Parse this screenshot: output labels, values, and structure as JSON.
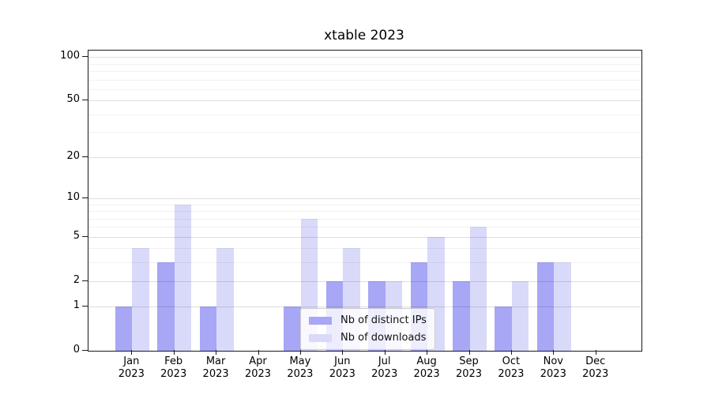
{
  "chart_data": {
    "type": "bar",
    "title": "xtable 2023",
    "categories": [
      "Jan",
      "Feb",
      "Mar",
      "Apr",
      "May",
      "Jun",
      "Jul",
      "Aug",
      "Sep",
      "Oct",
      "Nov",
      "Dec"
    ],
    "x_year": "2023",
    "series": [
      {
        "name": "Nb of distinct IPs",
        "color": "#a7a7f6",
        "values": [
          1,
          3,
          1,
          0,
          1,
          2,
          2,
          3,
          2,
          1,
          3,
          0
        ]
      },
      {
        "name": "Nb of downloads",
        "color": "#d9d9f9",
        "values": [
          4,
          9,
          4,
          0,
          7,
          4,
          2,
          5,
          6,
          2,
          3,
          0
        ]
      }
    ],
    "yscale": "log1p",
    "ylim": [
      0,
      112
    ],
    "y_ticks": [
      0,
      1,
      2,
      5,
      10,
      20,
      50,
      100
    ],
    "y_minor_gridlines": [
      3,
      4,
      6,
      7,
      8,
      9,
      30,
      40,
      60,
      70,
      80,
      90
    ],
    "grid": true,
    "legend_position": "inside lower center"
  },
  "colors": {
    "spine": "#1a1a1a",
    "background": "#ffffff"
  }
}
